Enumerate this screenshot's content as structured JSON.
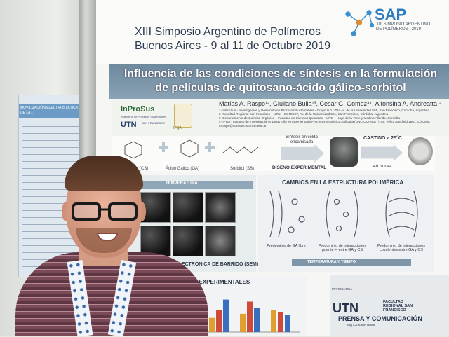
{
  "event": {
    "line1": "XIII Simposio Argentino de Polímeros",
    "line2": "Buenos Aires - 9 al 11 de Octubre 2019"
  },
  "logo": {
    "sap": "SAP",
    "sap_sub": "XIII SIMPOSIO ARGENTINO DE POLÍMEROS | 2019",
    "inprosus": "InProSus",
    "inprosus_sub": "Ingeniería de Procesos Sustentables",
    "utn": "UTN",
    "utn_sub": "SAN FRANCISCO",
    "ipqa": "IPQA"
  },
  "poster": {
    "title_line1": "Influencia de las condiciones de síntesis en la formulación",
    "title_line2": "de películas de quitosano-ácido gálico-sorbitol",
    "authors": "Matías A. Raspo¹², Giuliano Bulla¹³, Cesar G. Gomez³⁴, Alfonsina A. Andreatta¹²",
    "affiliations": [
      "1- InProSus - Investigación y Desarrollo en Procesos Sustentables - Grupo I+D UTN, Av. de la Universidad 501, San Francisco, Córdoba, Argentina",
      "2- Facultad Regional San Francisco – UTN – CONICET, Av. de la Universidad 501, San Francisco, Córdoba, Argentina",
      "3- Departamento de Química Orgánica – Facultad de Ciencias Químicas – UNC – Haya de la Torre y Medina Allende, Córdoba",
      "4- IPQA - Instituto de Investigación y Desarrollo en Ingeniería de Procesos y Química Aplicada (UNC-CONICET), Av. Vélez Sarsfield 1601, Córdoba",
      "mraspo@sanfrancisco.utn.edu.ar"
    ],
    "chem_labels": [
      "Quitosano (CS)",
      "Ácido Gálico (GA)",
      "Sorbitol (SB)"
    ],
    "sintesis": "Síntesis en celda encamisada",
    "diseno": "DISEÑO EXPERIMENTAL",
    "casting": "CASTING a 25°C",
    "horas": "48 horas",
    "temperatura": "TEMPERATURA",
    "sem_title": "MICROSCOPÍA ELECTRÓNICA DE BARRIDO (SEM)",
    "struct_title": "CAMBIOS EN LA ESTRUCTURA POLIMÉRICA",
    "struct_labels": [
      "Predominio de GA libre",
      "Predominio de interacciones puente H entre GA y CS",
      "Predominio de interacciones covalentes entre GA y CS"
    ],
    "temp_tiempo": "TEMPERATURA Y TIEMPO",
    "exp_title": "DATOS EXPERIMENTALES",
    "matematica": "MATEMÁTICA",
    "utn_big": "UTN",
    "utn_fac": "FACULTAD REGIONAL SAN FRANCISCO",
    "prensa": "PRENSA Y COMUNICACIÓN",
    "jing": "Ing Giuliano Bulla"
  },
  "left_poster": {
    "heading": "MOVILIZACIÓN ELECTROSTÁTICA DE LA..."
  },
  "colors": {
    "title_band": "#7a93a8",
    "sap_blue": "#2e7bbf",
    "shirt": "#7a4a56"
  },
  "chart_bars": [
    {
      "v": [
        0.35,
        0.55,
        0.8
      ]
    },
    {
      "v": [
        0.45,
        0.75,
        0.6
      ]
    },
    {
      "v": [
        0.55,
        0.5,
        0.42
      ]
    }
  ]
}
